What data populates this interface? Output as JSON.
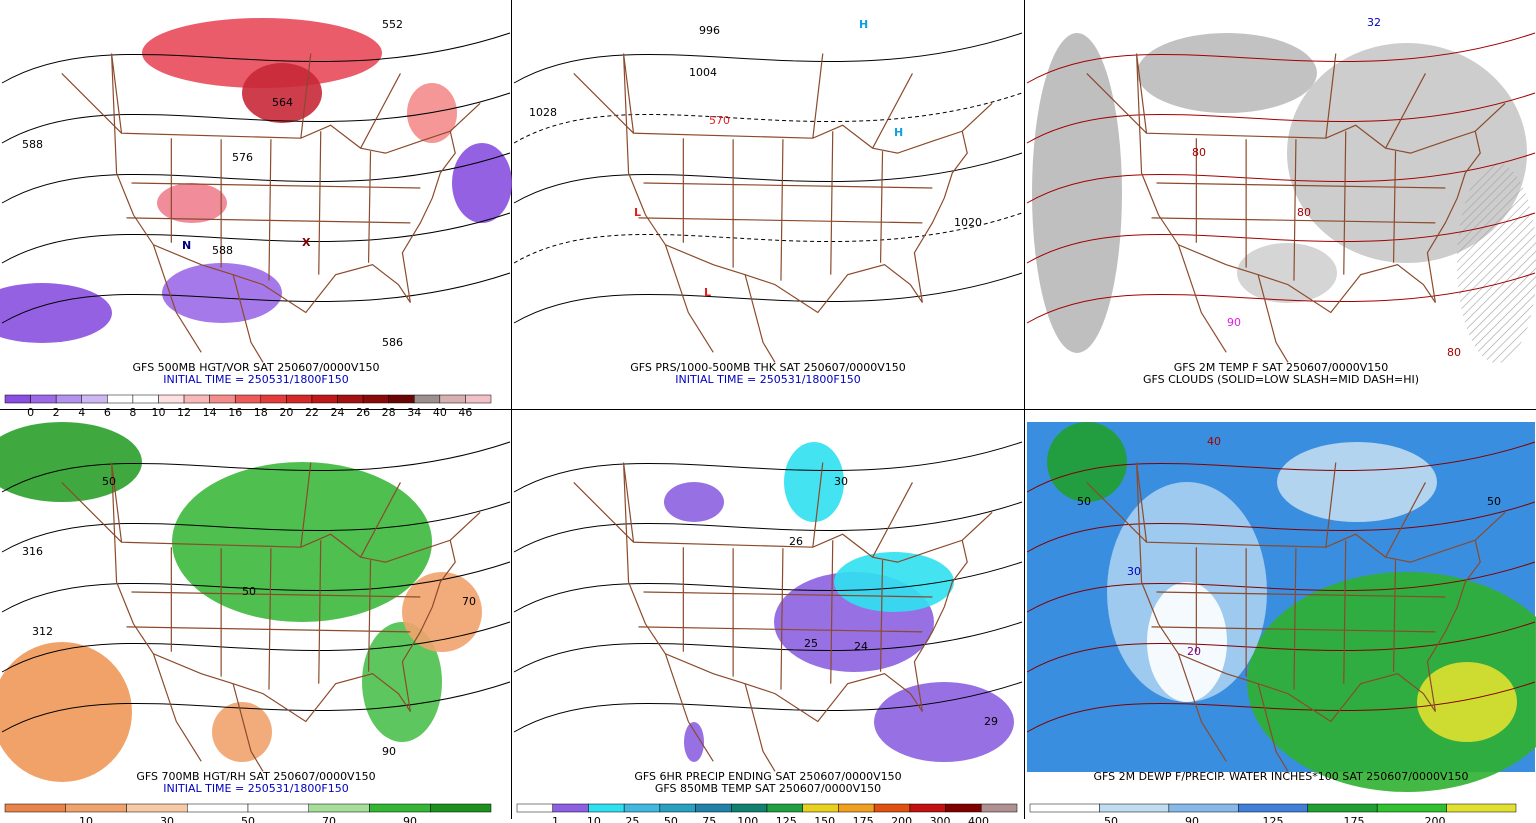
{
  "panels": [
    {
      "lines": [
        {
          "text": "GFS 500MB HGT/VOR SAT 250607/0000V150",
          "color": "#000000"
        },
        {
          "text": "INITIAL TIME = 250531/1800F150",
          "color": "#0000c0"
        }
      ],
      "map_labels": [
        {
          "text": "552",
          "color": "#000000"
        },
        {
          "text": "564",
          "color": "#000000"
        },
        {
          "text": "576",
          "color": "#000000"
        },
        {
          "text": "588",
          "color": "#000000"
        },
        {
          "text": "588",
          "color": "#000000"
        },
        {
          "text": "586",
          "color": "#000000"
        },
        {
          "text": "N",
          "color": "#000080"
        },
        {
          "text": "X",
          "color": "#800000"
        }
      ],
      "colorbar": {
        "colors": [
          "#8a4fe0",
          "#9c6ae8",
          "#b392ee",
          "#cdb8f4",
          "#ffffff",
          "#ffffff",
          "#fde0e0",
          "#f9b8b8",
          "#f48c8c",
          "#ee5a5a",
          "#e53b3b",
          "#d62828",
          "#c01818",
          "#a51010",
          "#8a0a0a",
          "#6a0505",
          "#9e8f8f",
          "#d8b0b0",
          "#f4c0c8"
        ],
        "labels": [
          0,
          2,
          4,
          6,
          8,
          10,
          12,
          14,
          16,
          18,
          20,
          22,
          24,
          26,
          28,
          34,
          40,
          46
        ]
      }
    },
    {
      "lines": [
        {
          "text": "GFS PRS/1000-500MB THK SAT 250607/0000V150",
          "color": "#000000"
        },
        {
          "text": "INITIAL TIME = 250531/1800F150",
          "color": "#0000c0"
        }
      ],
      "map_labels": [
        {
          "text": "996",
          "color": "#000000"
        },
        {
          "text": "1004",
          "color": "#000000"
        },
        {
          "text": "1028",
          "color": "#000000"
        },
        {
          "text": "1020",
          "color": "#000000"
        },
        {
          "text": "L",
          "color": "#e02020"
        },
        {
          "text": "L",
          "color": "#e02020"
        },
        {
          "text": "H",
          "color": "#10a0e0"
        },
        {
          "text": "H",
          "color": "#10a0e0"
        },
        {
          "text": "570",
          "color": "#e02020"
        }
      ],
      "colorbar": null
    },
    {
      "lines": [
        {
          "text": "GFS 2M TEMP F SAT 250607/0000V150",
          "color": "#000000"
        },
        {
          "text": "GFS CLOUDS (SOLID=LOW SLASH=MID DASH=HI)",
          "color": "#000000"
        }
      ],
      "map_labels": [
        {
          "text": "80",
          "color": "#a00000"
        },
        {
          "text": "80",
          "color": "#a00000"
        },
        {
          "text": "90",
          "color": "#e020e0"
        },
        {
          "text": "80",
          "color": "#a00000"
        },
        {
          "text": "32",
          "color": "#0000c0"
        }
      ],
      "colorbar": null
    },
    {
      "lines": [
        {
          "text": "GFS 700MB HGT/RH SAT 250607/0000V150",
          "color": "#000000"
        },
        {
          "text": "INITIAL TIME = 250531/1800F150",
          "color": "#0000c0"
        }
      ],
      "map_labels": [
        {
          "text": "316",
          "color": "#000000"
        },
        {
          "text": "312",
          "color": "#000000"
        },
        {
          "text": "50",
          "color": "#000000"
        },
        {
          "text": "50",
          "color": "#000000"
        },
        {
          "text": "90",
          "color": "#000000"
        },
        {
          "text": "70",
          "color": "#000000"
        }
      ],
      "colorbar": {
        "colors": [
          "#e9844a",
          "#f1a36d",
          "#f8c9a7",
          "#ffffff",
          "#ffffff",
          "#a6dd9a",
          "#35b535",
          "#1e8f1e"
        ],
        "labels": [
          10,
          30,
          50,
          70,
          90
        ]
      }
    },
    {
      "lines": [
        {
          "text": "GFS 6HR PRECIP ENDING SAT 250607/0000V150",
          "color": "#000000"
        },
        {
          "text": "GFS 850MB TEMP SAT 250607/0000V150",
          "color": "#000000"
        }
      ],
      "map_labels": [
        {
          "text": "30",
          "color": "#000000"
        },
        {
          "text": "26",
          "color": "#000000"
        },
        {
          "text": "25",
          "color": "#000000"
        },
        {
          "text": "24",
          "color": "#000000"
        },
        {
          "text": "29",
          "color": "#000000"
        }
      ],
      "colorbar": {
        "colors": [
          "#ffffff",
          "#8c60e0",
          "#30e0f0",
          "#40b8e0",
          "#2aa0c0",
          "#2080a8",
          "#108070",
          "#20a040",
          "#e8d020",
          "#f0a020",
          "#e05010",
          "#c01010",
          "#800000",
          "#b09090"
        ],
        "labels": [
          1,
          10,
          25,
          50,
          75,
          100,
          125,
          150,
          175,
          200,
          300,
          400
        ]
      }
    },
    {
      "lines": [
        {
          "text": "GFS 2M DEWP F/PRECIP. WATER INCHES*100 SAT 250607/0000V150",
          "color": "#000000"
        }
      ],
      "map_labels": [
        {
          "text": "50",
          "color": "#000000"
        },
        {
          "text": "30",
          "color": "#0000c0"
        },
        {
          "text": "40",
          "color": "#a00000"
        },
        {
          "text": "20",
          "color": "#800080"
        },
        {
          "text": "50",
          "color": "#000000"
        }
      ],
      "colorbar": {
        "colors": [
          "#ffffff",
          "#c0dcf0",
          "#88b8e8",
          "#4080d8",
          "#20a030",
          "#30c030",
          "#e0e030"
        ],
        "labels": [
          50,
          90,
          125,
          175,
          200
        ]
      }
    }
  ]
}
